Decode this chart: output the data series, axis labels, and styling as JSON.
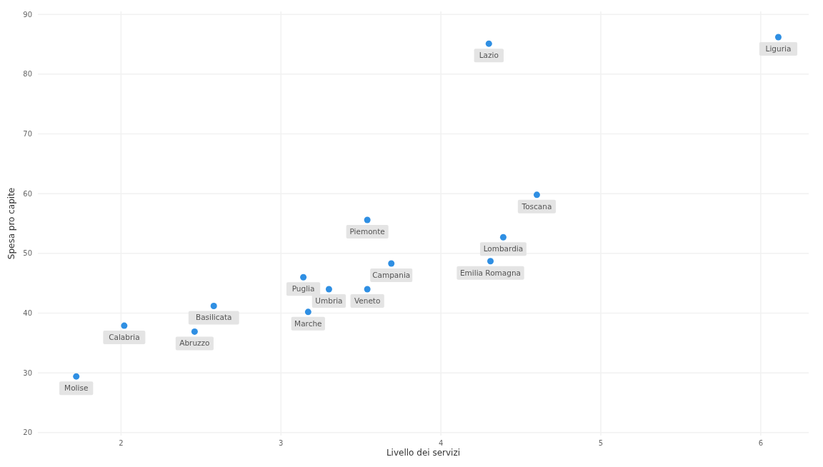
{
  "chart_data": {
    "type": "scatter",
    "xlabel": "Livello dei servizi",
    "ylabel": "Spesa pro capite",
    "xlim": [
      1.48,
      6.3
    ],
    "ylim": [
      19.5,
      90.5
    ],
    "xticks": [
      2,
      3,
      4,
      5,
      6
    ],
    "yticks": [
      20,
      30,
      40,
      50,
      60,
      70,
      80,
      90
    ],
    "grid": true,
    "marker": "circle",
    "series": [
      {
        "color": "#2f8fe3",
        "x": [
          1.72,
          2.02,
          2.46,
          2.58,
          3.14,
          3.17,
          3.3,
          3.54,
          3.69,
          3.54,
          4.31,
          4.39,
          4.6,
          4.3,
          6.11
        ],
        "values": [
          29.4,
          37.9,
          36.9,
          41.2,
          46.0,
          40.2,
          44.0,
          44.0,
          48.3,
          55.6,
          48.7,
          52.7,
          59.8,
          85.1,
          86.2
        ]
      }
    ],
    "annotations": [
      {
        "text": "Molise",
        "x": 1.72,
        "y": 29.4
      },
      {
        "text": "Calabria",
        "x": 2.02,
        "y": 37.9
      },
      {
        "text": "Abruzzo",
        "x": 2.46,
        "y": 36.9
      },
      {
        "text": "Basilicata",
        "x": 2.58,
        "y": 41.2
      },
      {
        "text": "Puglia",
        "x": 3.14,
        "y": 46.0
      },
      {
        "text": "Marche",
        "x": 3.17,
        "y": 40.2
      },
      {
        "text": "Umbria",
        "x": 3.3,
        "y": 44.0
      },
      {
        "text": "Veneto",
        "x": 3.54,
        "y": 44.0
      },
      {
        "text": "Campania",
        "x": 3.69,
        "y": 48.3
      },
      {
        "text": "Piemonte",
        "x": 3.54,
        "y": 55.6
      },
      {
        "text": "Emilia Romagna",
        "x": 4.31,
        "y": 48.7
      },
      {
        "text": "Lombardia",
        "x": 4.39,
        "y": 52.7
      },
      {
        "text": "Toscana",
        "x": 4.6,
        "y": 59.8
      },
      {
        "text": "Lazio",
        "x": 4.3,
        "y": 85.1
      },
      {
        "text": "Liguria",
        "x": 6.11,
        "y": 86.2
      }
    ]
  }
}
